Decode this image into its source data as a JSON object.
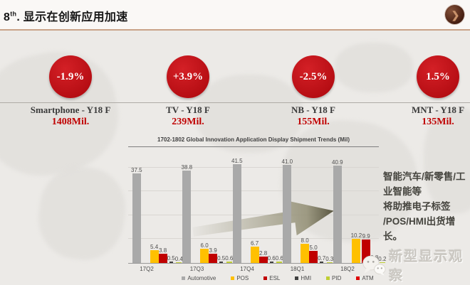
{
  "header": {
    "title_num": "8",
    "title_sup": "th",
    "title_rest": ". 显示在创新应用加速",
    "logo_glyph": "❯",
    "accent_line_color": "#C9A288"
  },
  "kpis": [
    {
      "pct": "-1.9%",
      "label": "Smartphone - Y18 F",
      "value": "1408Mil."
    },
    {
      "pct": "+3.9%",
      "label": "TV - Y18 F",
      "value": "239Mil."
    },
    {
      "pct": "-2.5%",
      "label": "NB - Y18 F",
      "value": "155Mil."
    },
    {
      "pct": "1.5%",
      "label": "MNT - Y18 F",
      "value": "135Mil."
    }
  ],
  "kpi_circle_color": "#C3141A",
  "chart_data": {
    "type": "bar",
    "title": "1702-1802 Global Innovation Application Display Shipment Trends (Mil)",
    "categories": [
      "17Q2",
      "17Q3",
      "17Q4",
      "18Q1",
      "18Q2"
    ],
    "series": [
      {
        "name": "Automotive",
        "color": "#A9A9A9",
        "values": [
          37.5,
          38.8,
          41.5,
          41.0,
          40.9
        ]
      },
      {
        "name": "POS",
        "color": "#FFC000",
        "values": [
          5.4,
          6.0,
          6.7,
          8.0,
          10.2
        ]
      },
      {
        "name": "ESL",
        "color": "#C00000",
        "values": [
          3.8,
          3.9,
          2.8,
          5.0,
          9.9
        ]
      },
      {
        "name": "HMI",
        "color": "#404040",
        "values": [
          0.5,
          0.5,
          0.6,
          0.7,
          0.8
        ]
      },
      {
        "name": "PID",
        "color": "#BFCE33",
        "values": [
          0.4,
          0.6,
          0.6,
          0.3,
          0.2
        ]
      },
      {
        "name": "ATM",
        "color": "#DE0000",
        "values": [
          0.1,
          0.1,
          0.1,
          0.0,
          null
        ]
      }
    ],
    "ylim": [
      0,
      48.8
    ],
    "grid_step": 10,
    "grid": true,
    "legend_position": "bottom"
  },
  "annotation": {
    "lines": [
      "智能汽车/新零售/工",
      "业智能等",
      "将助推电子标签",
      "/POS/HMI出货增长。"
    ]
  },
  "watermark": {
    "text": "新型显示观察"
  }
}
